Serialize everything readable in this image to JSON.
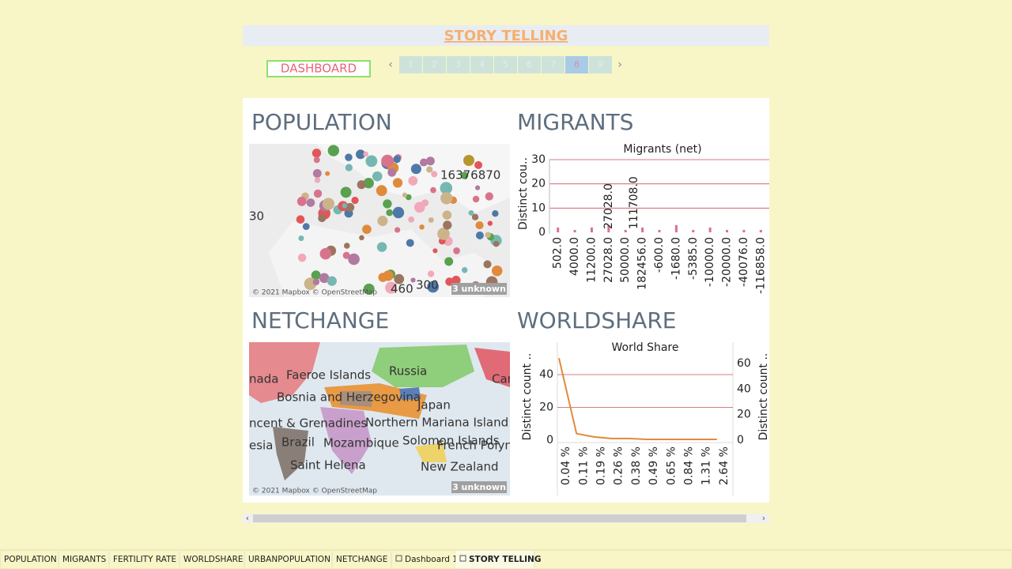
{
  "header": {
    "title": "STORY TELLING",
    "dashboard_button": "DASHBOARD",
    "pages": [
      "1",
      "2",
      "3",
      "4",
      "5",
      "6",
      "7",
      "8",
      "9"
    ],
    "active_page": "8"
  },
  "population": {
    "title": "POPULATION",
    "map_labels": [
      "16376870",
      "30",
      "460",
      "300"
    ],
    "attribution": "© 2021 Mapbox © OpenStreetMap",
    "unknown": "3 unknown"
  },
  "migrants": {
    "title": "MIGRANTS",
    "chart_data": {
      "type": "bar",
      "title": "Migrants (net)",
      "y_label": "Distinct cou..",
      "categories": [
        "502.0",
        "4000.0",
        "11200.0",
        "27028.0",
        "50000.0",
        "182456.0",
        "-600.0",
        "-1680.0",
        "-5385.0",
        "-10000.0",
        "-20000.0",
        "-40076.0",
        "-116858.0"
      ],
      "values": [
        2,
        1,
        2,
        3,
        1,
        2,
        1,
        3,
        1,
        2,
        1,
        1,
        1
      ],
      "color": "#d9738c",
      "annotations": [
        "27028.0",
        "111708.0"
      ],
      "ylim": [
        0,
        30
      ],
      "yticks": [
        0,
        10,
        20,
        30
      ],
      "grid": true
    }
  },
  "netchange": {
    "title": "NETCHANGE",
    "map_labels": [
      "nada",
      "Faeroe Islands",
      "Russia",
      "Car",
      "Bosnia and Herzegovina",
      "Japan",
      "ncent & Grenadines",
      "Northern Mariana Island",
      "esia",
      "Brazil",
      "Mozambique",
      "Solomon Islands",
      "French Polyn",
      "Saint Helena",
      "New Zealand"
    ],
    "attribution": "© 2021 Mapbox © OpenStreetMap",
    "unknown": "3 unknown"
  },
  "worldshare": {
    "title": "WORLDSHARE",
    "chart_data": {
      "type": "line",
      "title": "World Share",
      "y_label": "Distinct count ..",
      "y2_label": "Distinct count ..",
      "categories": [
        "0.04 %",
        "0.11 %",
        "0.19 %",
        "0.26 %",
        "0.38 %",
        "0.49 %",
        "0.65 %",
        "0.84 %",
        "1.31 %",
        "2.64 %"
      ],
      "series": [
        {
          "name": "World Share",
          "color": "#e08a3c",
          "values": [
            50,
            4,
            2,
            1,
            1,
            0.5,
            0.5,
            0.5,
            0.5,
            0.5
          ]
        }
      ],
      "ylim": [
        0,
        53
      ],
      "yticks": [
        0,
        20,
        40
      ],
      "y2lim": [
        0,
        68
      ],
      "y2ticks": [
        0,
        20,
        40,
        60
      ],
      "grid": true
    }
  },
  "tabs": [
    "POPULATION",
    "MIGRANTS",
    "FERTILITY RATE",
    "WORLDSHARE",
    "URBANPOPULATION",
    "NETCHANGE",
    "Dashboard 1",
    "STORY TELLING"
  ],
  "active_tab": "STORY TELLING"
}
